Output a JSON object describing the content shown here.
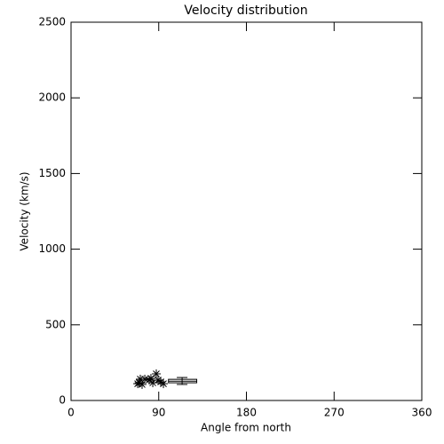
{
  "chart_data": {
    "type": "scatter",
    "title": "Velocity distribution",
    "x_label": "Angle from north",
    "y_label": "Velocity (km/s)",
    "x": [
      68.4,
      71.1,
      72.9,
      75.7,
      80.2,
      83.9,
      87.5,
      89.3,
      92.1,
      94.8,
      82,
      70
    ],
    "values": [
      111,
      141,
      106,
      141,
      135,
      117,
      176,
      135,
      123,
      111,
      146,
      117
    ],
    "marker": "asterisk",
    "color": "#000000",
    "box": {
      "x": 114,
      "x_range": [
        100,
        129
      ],
      "q1": 117,
      "q3": 140,
      "median": 128,
      "whisker_low": 106,
      "whisker_high": 152
    },
    "xlim": [
      0,
      360
    ],
    "xticks": [
      0,
      90,
      180,
      270,
      360
    ],
    "ylim": [
      0,
      2500
    ],
    "yticks": [
      0,
      500,
      1000,
      1500,
      2000,
      2500
    ]
  }
}
